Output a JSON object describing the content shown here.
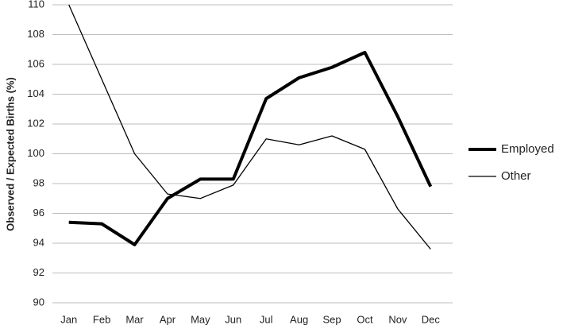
{
  "chart_data": {
    "type": "line",
    "y_label": "Observed / Expected Births (%)",
    "categories": [
      "Jan",
      "Feb",
      "Mar",
      "Apr",
      "May",
      "Jun",
      "Jul",
      "Aug",
      "Sep",
      "Oct",
      "Nov",
      "Dec"
    ],
    "series": [
      {
        "name": "Employed",
        "color": "#000000",
        "line_width": 4,
        "values": [
          95.4,
          95.3,
          93.9,
          97.0,
          98.3,
          98.3,
          103.7,
          105.1,
          105.8,
          106.8,
          102.5,
          97.8
        ]
      },
      {
        "name": "Other",
        "color": "#000000",
        "line_width": 1.3,
        "values": [
          110.0,
          105.0,
          100.0,
          97.3,
          97.0,
          97.9,
          101.0,
          100.6,
          101.2,
          100.3,
          96.3,
          93.6
        ]
      }
    ],
    "ylim": [
      90,
      110
    ],
    "yticks": [
      90,
      92,
      94,
      96,
      98,
      100,
      102,
      104,
      106,
      108,
      110
    ],
    "grid": true,
    "legend": "right"
  }
}
